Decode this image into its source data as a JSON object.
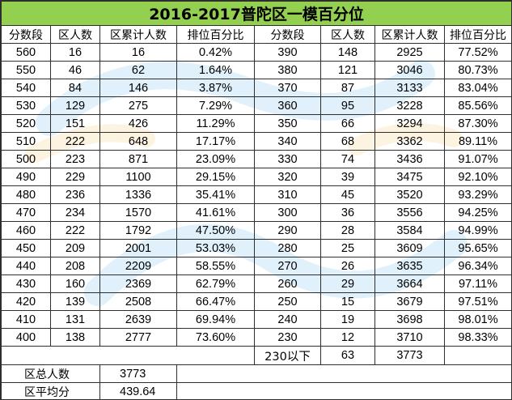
{
  "title": "2016-2017普陀区一模百分位",
  "headers": [
    "分数段",
    "区人数",
    "区累计人数",
    "排位百分比",
    "分数段",
    "区人数",
    "区累计人数",
    "排位百分比"
  ],
  "rows": [
    [
      "560",
      "16",
      "16",
      "0.42%",
      "390",
      "148",
      "2925",
      "77.52%"
    ],
    [
      "550",
      "46",
      "62",
      "1.64%",
      "380",
      "121",
      "3046",
      "80.73%"
    ],
    [
      "540",
      "84",
      "146",
      "3.87%",
      "370",
      "87",
      "3133",
      "83.04%"
    ],
    [
      "530",
      "129",
      "275",
      "7.29%",
      "360",
      "95",
      "3228",
      "85.56%"
    ],
    [
      "520",
      "151",
      "426",
      "11.29%",
      "350",
      "66",
      "3294",
      "87.30%"
    ],
    [
      "510",
      "222",
      "648",
      "17.17%",
      "340",
      "68",
      "3362",
      "89.11%"
    ],
    [
      "500",
      "223",
      "871",
      "23.09%",
      "330",
      "74",
      "3436",
      "91.07%"
    ],
    [
      "490",
      "229",
      "1100",
      "29.15%",
      "320",
      "39",
      "3475",
      "92.10%"
    ],
    [
      "480",
      "236",
      "1336",
      "35.41%",
      "310",
      "45",
      "3520",
      "93.29%"
    ],
    [
      "470",
      "234",
      "1570",
      "41.61%",
      "300",
      "36",
      "3556",
      "94.25%"
    ],
    [
      "460",
      "222",
      "1792",
      "47.50%",
      "290",
      "28",
      "3584",
      "94.99%"
    ],
    [
      "450",
      "209",
      "2001",
      "53.03%",
      "280",
      "25",
      "3609",
      "95.65%"
    ],
    [
      "440",
      "208",
      "2209",
      "58.55%",
      "270",
      "26",
      "3635",
      "96.34%"
    ],
    [
      "430",
      "160",
      "2369",
      "62.79%",
      "260",
      "29",
      "3664",
      "97.11%"
    ],
    [
      "420",
      "139",
      "2508",
      "66.47%",
      "250",
      "15",
      "3679",
      "97.51%"
    ],
    [
      "410",
      "131",
      "2639",
      "69.94%",
      "240",
      "19",
      "3698",
      "98.01%"
    ],
    [
      "400",
      "138",
      "2777",
      "73.60%",
      "230",
      "12",
      "3710",
      "98.33%"
    ]
  ],
  "below": {
    "score": "230以下",
    "count": "63",
    "cumulative": "3773"
  },
  "summary": {
    "total_label": "区总人数",
    "total_value": "3773",
    "avg_label": "区平均分",
    "avg_value": "439.64"
  },
  "colors": {
    "title_bg": "#93d050",
    "border": "#2e2e2e",
    "watermark": "#cfe7f7"
  }
}
